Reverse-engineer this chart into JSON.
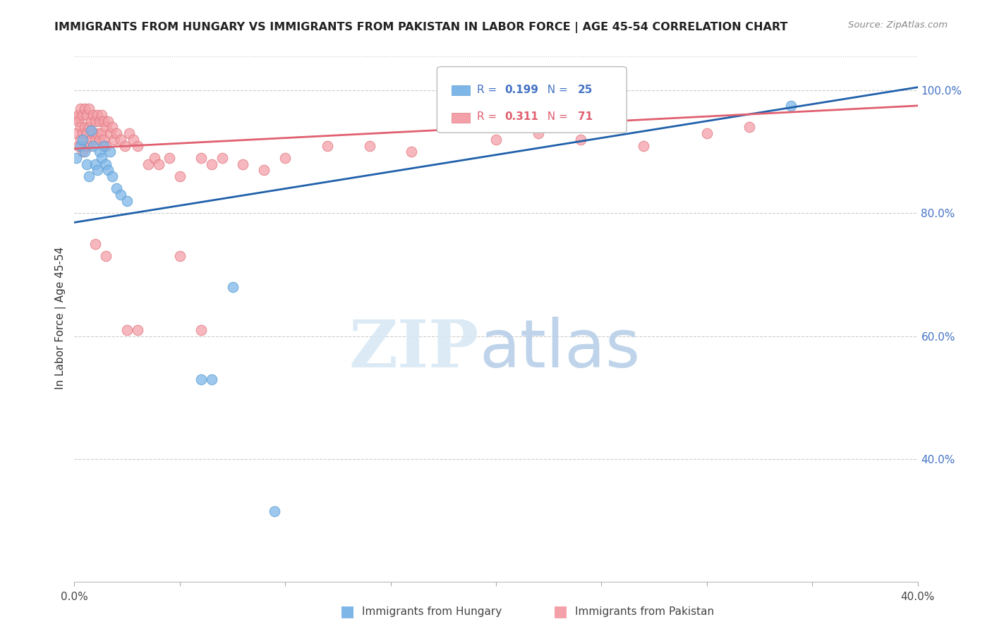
{
  "title": "IMMIGRANTS FROM HUNGARY VS IMMIGRANTS FROM PAKISTAN IN LABOR FORCE | AGE 45-54 CORRELATION CHART",
  "source": "Source: ZipAtlas.com",
  "ylabel": "In Labor Force | Age 45-54",
  "xlim": [
    0.0,
    0.4
  ],
  "ylim": [
    0.2,
    1.06
  ],
  "yticks": [
    0.4,
    0.6,
    0.8,
    1.0
  ],
  "ytick_labels": [
    "40.0%",
    "60.0%",
    "80.0%",
    "100.0%"
  ],
  "xticks": [
    0.0,
    0.05,
    0.1,
    0.15,
    0.2,
    0.25,
    0.3,
    0.35,
    0.4
  ],
  "xtick_labels": [
    "0.0%",
    "",
    "",
    "",
    "",
    "",
    "",
    "",
    "40.0%"
  ],
  "hungary_color": "#7EB6E8",
  "hungary_edge_color": "#5A9FD4",
  "pakistan_color": "#F4A0A8",
  "pakistan_edge_color": "#E07880",
  "trend_hungary_color": "#2060AA",
  "trend_pakistan_color": "#E06070",
  "hungary_R": "0.199",
  "hungary_N": "25",
  "pakistan_R": "0.311",
  "pakistan_N": "71",
  "legend_label_hungary": "Immigrants from Hungary",
  "legend_label_pakistan": "Immigrants from Pakistan",
  "hungary_line_x0": 0.0,
  "hungary_line_y0": 0.785,
  "hungary_line_x1": 0.4,
  "hungary_line_y1": 1.005,
  "pakistan_line_x0": 0.0,
  "pakistan_line_y0": 0.905,
  "pakistan_line_x1": 0.4,
  "pakistan_line_y1": 0.975,
  "hungary_x": [
    0.001,
    0.003,
    0.004,
    0.005,
    0.006,
    0.007,
    0.008,
    0.009,
    0.01,
    0.011,
    0.012,
    0.013,
    0.014,
    0.015,
    0.016,
    0.017,
    0.018,
    0.02,
    0.022,
    0.025,
    0.06,
    0.065,
    0.075,
    0.095,
    0.34
  ],
  "hungary_y": [
    0.89,
    0.91,
    0.92,
    0.9,
    0.88,
    0.86,
    0.935,
    0.91,
    0.88,
    0.87,
    0.9,
    0.89,
    0.91,
    0.88,
    0.87,
    0.9,
    0.86,
    0.84,
    0.83,
    0.82,
    0.53,
    0.53,
    0.68,
    0.315,
    0.975
  ],
  "pakistan_x": [
    0.001,
    0.001,
    0.002,
    0.002,
    0.002,
    0.003,
    0.003,
    0.003,
    0.004,
    0.004,
    0.004,
    0.005,
    0.005,
    0.005,
    0.006,
    0.006,
    0.007,
    0.007,
    0.007,
    0.008,
    0.008,
    0.009,
    0.009,
    0.01,
    0.01,
    0.011,
    0.011,
    0.012,
    0.012,
    0.013,
    0.013,
    0.014,
    0.014,
    0.015,
    0.015,
    0.016,
    0.017,
    0.018,
    0.019,
    0.02,
    0.022,
    0.024,
    0.026,
    0.028,
    0.03,
    0.035,
    0.038,
    0.04,
    0.045,
    0.05,
    0.06,
    0.065,
    0.07,
    0.08,
    0.09,
    0.1,
    0.12,
    0.14,
    0.16,
    0.2,
    0.22,
    0.24,
    0.27,
    0.3,
    0.32,
    0.01,
    0.015,
    0.025,
    0.03,
    0.05,
    0.06
  ],
  "pakistan_y": [
    0.955,
    0.93,
    0.96,
    0.95,
    0.91,
    0.97,
    0.94,
    0.92,
    0.96,
    0.93,
    0.9,
    0.97,
    0.94,
    0.91,
    0.96,
    0.93,
    0.97,
    0.94,
    0.91,
    0.95,
    0.92,
    0.96,
    0.93,
    0.95,
    0.92,
    0.96,
    0.93,
    0.95,
    0.92,
    0.96,
    0.93,
    0.95,
    0.92,
    0.94,
    0.91,
    0.95,
    0.93,
    0.94,
    0.92,
    0.93,
    0.92,
    0.91,
    0.93,
    0.92,
    0.91,
    0.88,
    0.89,
    0.88,
    0.89,
    0.86,
    0.89,
    0.88,
    0.89,
    0.88,
    0.87,
    0.89,
    0.91,
    0.91,
    0.9,
    0.92,
    0.93,
    0.92,
    0.91,
    0.93,
    0.94,
    0.75,
    0.73,
    0.61,
    0.61,
    0.73,
    0.61
  ]
}
